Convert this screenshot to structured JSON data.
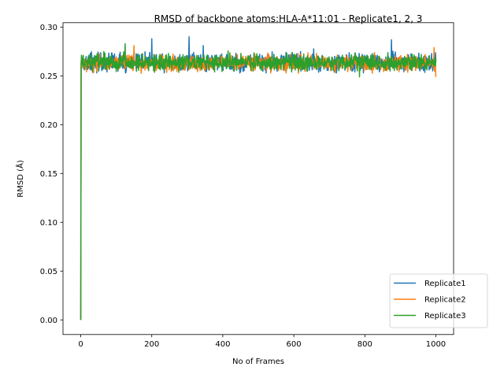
{
  "chart_data": {
    "type": "line",
    "title": "RMSD of backbone atoms:HLA-A*11:01 - Replicate1, 2, 3",
    "xlabel": "No of Frames",
    "ylabel": "RMSD (Å)",
    "xlim": [
      -50,
      1050
    ],
    "ylim": [
      -0.015,
      0.3045
    ],
    "xticks": [
      0,
      200,
      400,
      600,
      800,
      1000
    ],
    "xtick_labels": [
      "0",
      "200",
      "400",
      "600",
      "800",
      "1000"
    ],
    "yticks": [
      0.0,
      0.05,
      0.1,
      0.15,
      0.2,
      0.25,
      0.3
    ],
    "ytick_labels": [
      "0.00",
      "0.05",
      "0.10",
      "0.15",
      "0.20",
      "0.25",
      "0.30"
    ],
    "grid": false,
    "legend_position": "lower-right",
    "frames": 1001,
    "series": [
      {
        "name": "Replicate1",
        "color": "#1f77b4",
        "start_value": 0.0,
        "plateau_mean": 0.264,
        "plateau_range": [
          0.251,
          0.29
        ],
        "peaks": [
          {
            "x": 200,
            "y": 0.288
          },
          {
            "x": 305,
            "y": 0.29
          },
          {
            "x": 345,
            "y": 0.281
          },
          {
            "x": 875,
            "y": 0.287
          }
        ]
      },
      {
        "name": "Replicate2",
        "color": "#ff7f0e",
        "start_value": 0.0,
        "plateau_mean": 0.263,
        "plateau_range": [
          0.249,
          0.281
        ],
        "peaks": [
          {
            "x": 150,
            "y": 0.281
          },
          {
            "x": 995,
            "y": 0.279
          },
          {
            "x": 1000,
            "y": 0.249
          }
        ]
      },
      {
        "name": "Replicate3",
        "color": "#2ca02c",
        "start_value": 0.0,
        "plateau_mean": 0.264,
        "plateau_range": [
          0.249,
          0.283
        ],
        "peaks": [
          {
            "x": 125,
            "y": 0.283
          },
          {
            "x": 785,
            "y": 0.249
          }
        ]
      }
    ]
  }
}
